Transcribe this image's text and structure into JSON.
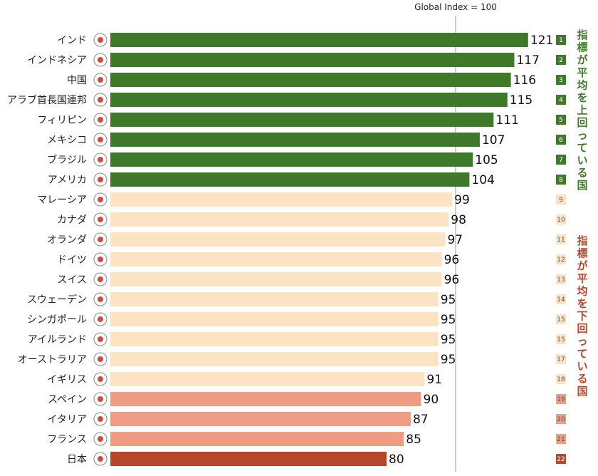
{
  "chart_data": {
    "type": "bar",
    "orientation": "horizontal",
    "reference_line": {
      "label": "Global Index = 100",
      "value": 100
    },
    "xlim": [
      0,
      125
    ],
    "categories": [
      "インド",
      "インドネシア",
      "中国",
      "アラブ首長国連邦",
      "フィリピン",
      "メキシコ",
      "ブラジル",
      "アメリカ",
      "マレーシア",
      "カナダ",
      "オランダ",
      "ドイツ",
      "スイス",
      "スウェーデン",
      "シンガポール",
      "アイルランド",
      "オーストラリア",
      "イギリス",
      "スペイン",
      "イタリア",
      "フランス",
      "日本"
    ],
    "values": [
      121,
      117,
      116,
      115,
      111,
      107,
      105,
      104,
      99,
      98,
      97,
      96,
      96,
      95,
      95,
      95,
      95,
      91,
      90,
      87,
      85,
      80
    ],
    "ranks": [
      "1",
      "2",
      "3",
      "4",
      "5",
      "6",
      "7",
      "8",
      "9",
      "10",
      "11",
      "12",
      "13",
      "14",
      "15",
      "15",
      "17",
      "18",
      "19",
      "20",
      "21",
      "22"
    ],
    "tiers": [
      "above",
      "above",
      "above",
      "above",
      "above",
      "above",
      "above",
      "above",
      "below",
      "below",
      "below",
      "below",
      "below",
      "below",
      "below",
      "below",
      "below",
      "below",
      "low",
      "low",
      "low",
      "lowest"
    ],
    "annotations": {
      "above": "指標が平均を上回っている国",
      "below": "指標が平均を下回っている国"
    }
  },
  "colors": {
    "above": "#3f7a2a",
    "below": "#fbe3c4",
    "low": "#ee9d84",
    "lowest": "#b5472a",
    "rank_above_text": "#ffffff",
    "rank_below_text": "#555555",
    "annotation_above": "#3f7a2a",
    "annotation_below": "#b5472a",
    "reference_line": "#999999"
  }
}
